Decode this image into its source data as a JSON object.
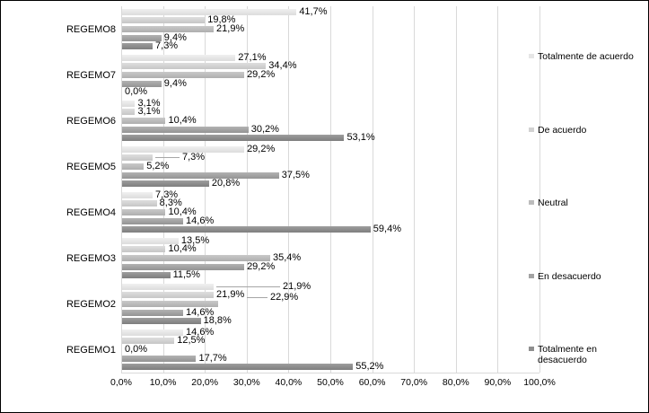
{
  "chart_data": {
    "type": "bar",
    "orientation": "horizontal",
    "title": "",
    "xlabel": "",
    "ylabel": "",
    "xlim": [
      0,
      100
    ],
    "grid": {
      "vertical": true,
      "horizontal": false,
      "color": "#d9d9d9"
    },
    "legend_position": "right",
    "x_ticks": [
      "0,0%",
      "10,0%",
      "20,0%",
      "30,0%",
      "40,0%",
      "50,0%",
      "60,0%",
      "70,0%",
      "80,0%",
      "90,0%",
      "100,0%"
    ],
    "categories": [
      "REGEMO8",
      "REGEMO7",
      "REGEMO6",
      "REGEMO5",
      "REGEMO4",
      "REGEMO3",
      "REGEMO2",
      "REGEMO1"
    ],
    "series": [
      {
        "name": "Totalmente de acuerdo",
        "legend_lines": [
          "Totalmente de acuerdo"
        ],
        "color": "#e6e6e6",
        "gradient": [
          "#f0f0f0",
          "#dcdcdc"
        ],
        "values": [
          41.7,
          27.1,
          3.1,
          29.2,
          7.3,
          13.5,
          21.9,
          14.6
        ],
        "labels": [
          "41,7%",
          "27,1%",
          "3,1%",
          "29,2%",
          "7,3%",
          "13,5%",
          "21,9%",
          "14,6%"
        ]
      },
      {
        "name": "De acuerdo",
        "legend_lines": [
          "De acuerdo"
        ],
        "color": "#d2d2d2",
        "gradient": [
          "#dedede",
          "#c6c6c6"
        ],
        "values": [
          19.8,
          34.4,
          3.1,
          7.3,
          8.3,
          10.4,
          21.9,
          12.5
        ],
        "labels": [
          "19,8%",
          "34,4%",
          "3,1%",
          "7,3%",
          "8,3%",
          "10,4%",
          "21,9%",
          "12,5%"
        ]
      },
      {
        "name": "Neutral",
        "legend_lines": [
          "Neutral"
        ],
        "color": "#bcbcbc",
        "gradient": [
          "#c9c9c9",
          "#aeaeae"
        ],
        "values": [
          21.9,
          29.2,
          10.4,
          5.2,
          10.4,
          35.4,
          22.9,
          0.0
        ],
        "labels": [
          "21,9%",
          "29,2%",
          "10,4%",
          "5,2%",
          "10,4%",
          "35,4%",
          "22,9%",
          "0,0%"
        ]
      },
      {
        "name": "En desacuerdo",
        "legend_lines": [
          "En desacuerdo"
        ],
        "color": "#a3a3a3",
        "gradient": [
          "#b2b2b2",
          "#949494"
        ],
        "values": [
          9.4,
          9.4,
          30.2,
          37.5,
          14.6,
          29.2,
          14.6,
          17.7
        ],
        "labels": [
          "9,4%",
          "9,4%",
          "30,2%",
          "37,5%",
          "14,6%",
          "29,2%",
          "14,6%",
          "17,7%"
        ]
      },
      {
        "name": "Totalmente en desacuerdo",
        "legend_lines": [
          "Totalmente en",
          "desacuerdo"
        ],
        "color": "#8e8e8e",
        "gradient": [
          "#9e9e9e",
          "#7e7e7e"
        ],
        "values": [
          7.3,
          0.0,
          53.1,
          20.8,
          59.4,
          11.5,
          18.8,
          55.2
        ],
        "labels": [
          "7,3%",
          "0,0%",
          "53,1%",
          "20,8%",
          "59,4%",
          "11,5%",
          "18,8%",
          "55,2%"
        ]
      }
    ],
    "callouts": [
      {
        "series_index": 1,
        "category_index": 3,
        "line_from": 38,
        "label_x": 68,
        "dy": 0
      },
      {
        "series_index": 0,
        "category_index": 6,
        "line_from": 106,
        "label_x": 180,
        "dy": 0
      },
      {
        "series_index": 2,
        "category_index": 6,
        "line_from": 140,
        "label_x": 166,
        "dy": -7
      }
    ]
  }
}
